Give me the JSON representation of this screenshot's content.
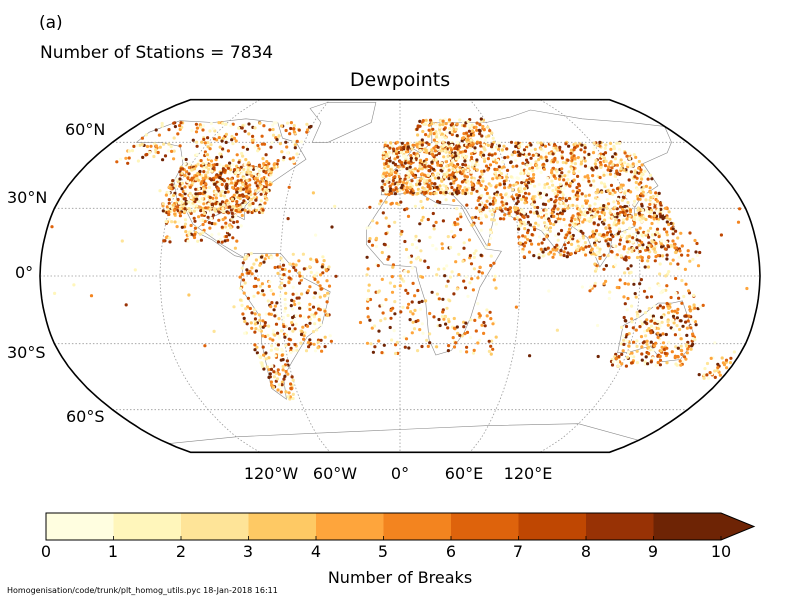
{
  "figure": {
    "panel_label": "(a)",
    "station_count_text": "Number of Stations = 7834",
    "title": "Dewpoints",
    "footer": "Homogenisation/code/trunk/plt_homog_utils.pyc   18-Jan-2018 16:11"
  },
  "map": {
    "projection": "robinson",
    "graticule": "dotted",
    "lat_labels": [
      "60°N",
      "30°N",
      "0°",
      "30°S",
      "60°S"
    ],
    "lon_labels": [
      "120°W",
      "60°W",
      "0°",
      "60°E",
      "120°E"
    ],
    "station_count": 7834
  },
  "colorbar": {
    "label": "Number of Breaks",
    "ticks": [
      "0",
      "1",
      "2",
      "3",
      "4",
      "5",
      "6",
      "7",
      "8",
      "9",
      "10"
    ],
    "colors": [
      "#fffee0",
      "#fff6bb",
      "#fee498",
      "#fec964",
      "#fea53c",
      "#f3841f",
      "#de630c",
      "#bf4702",
      "#983205",
      "#6e2405"
    ],
    "extend": "max"
  }
}
